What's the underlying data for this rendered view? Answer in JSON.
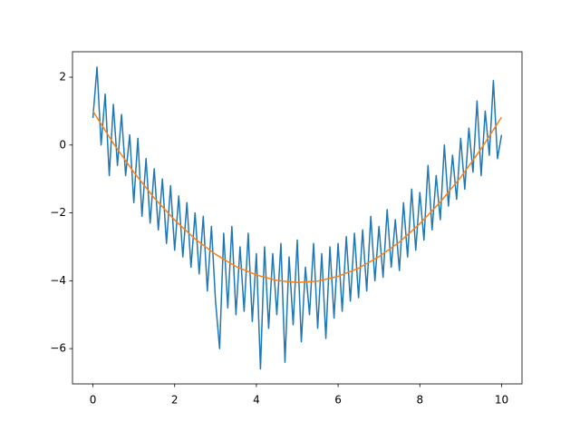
{
  "chart_data": {
    "type": "line",
    "xlim": [
      -0.5,
      10.5
    ],
    "ylim": [
      -7.04,
      2.75
    ],
    "xticks": [
      0,
      2,
      4,
      6,
      8,
      10
    ],
    "yticks": [
      {
        "value": -6,
        "label": "−6"
      },
      {
        "value": -4,
        "label": "−4"
      },
      {
        "value": -2,
        "label": "−2"
      },
      0,
      2
    ],
    "grid": false,
    "series": [
      {
        "color": "#1f77b4",
        "x": [
          0,
          0.1,
          0.2,
          0.3,
          0.4,
          0.5,
          0.6,
          0.7,
          0.8,
          0.9,
          1,
          1.1,
          1.2,
          1.3,
          1.4,
          1.5,
          1.6,
          1.7,
          1.8,
          1.9,
          2,
          2.1,
          2.2,
          2.3,
          2.4,
          2.5,
          2.6,
          2.7,
          2.8,
          2.9,
          3,
          3.1,
          3.2,
          3.3,
          3.4,
          3.5,
          3.6,
          3.7,
          3.8,
          3.9,
          4,
          4.1,
          4.2,
          4.3,
          4.4,
          4.5,
          4.6,
          4.7,
          4.8,
          4.9,
          5,
          5.1,
          5.2,
          5.3,
          5.4,
          5.5,
          5.6,
          5.7,
          5.8,
          5.9,
          6,
          6.1,
          6.2,
          6.3,
          6.4,
          6.5,
          6.6,
          6.7,
          6.8,
          6.9,
          7,
          7.1,
          7.2,
          7.3,
          7.4,
          7.5,
          7.6,
          7.7,
          7.8,
          7.9,
          8,
          8.1,
          8.2,
          8.3,
          8.4,
          8.5,
          8.6,
          8.7,
          8.8,
          8.9,
          9,
          9.1,
          9.2,
          9.3,
          9.4,
          9.5,
          9.6,
          9.7,
          9.8,
          9.9,
          10
        ],
        "values": [
          0.8,
          2.3,
          0.0,
          1.5,
          -0.9,
          1.2,
          -0.6,
          0.9,
          -0.9,
          0.3,
          -1.7,
          0.2,
          -2.1,
          -0.4,
          -2.3,
          -0.7,
          -2.5,
          -1.0,
          -2.9,
          -1.2,
          -3.1,
          -1.5,
          -3.3,
          -1.7,
          -3.6,
          -2.0,
          -3.8,
          -2.1,
          -4.3,
          -2.4,
          -4.6,
          -6.0,
          -2.6,
          -4.8,
          -2.4,
          -5.0,
          -3.0,
          -4.9,
          -2.6,
          -5.2,
          -3.2,
          -6.6,
          -3.0,
          -5.4,
          -3.2,
          -5.0,
          -2.9,
          -6.4,
          -3.3,
          -5.3,
          -2.8,
          -5.8,
          -3.6,
          -5.0,
          -2.9,
          -5.4,
          -3.2,
          -5.7,
          -3.0,
          -5.1,
          -2.9,
          -4.9,
          -2.7,
          -4.6,
          -2.6,
          -4.5,
          -2.5,
          -4.3,
          -2.1,
          -4.0,
          -2.4,
          -3.9,
          -1.9,
          -3.6,
          -2.2,
          -3.7,
          -1.7,
          -3.3,
          -1.3,
          -3.1,
          -1.4,
          -2.8,
          -0.6,
          -2.5,
          -0.9,
          -2.2,
          0.0,
          -1.8,
          -0.3,
          -1.6,
          0.2,
          -1.3,
          0.5,
          -0.8,
          1.3,
          -0.9,
          1.0,
          -0.3,
          1.9,
          -0.4,
          0.3
        ]
      },
      {
        "color": "#ff7f0e",
        "x": [
          0,
          0.5,
          1,
          1.5,
          2,
          2.5,
          3,
          3.5,
          4,
          4.5,
          5,
          5.5,
          6,
          6.5,
          7,
          7.5,
          8,
          8.5,
          9,
          9.5,
          10
        ],
        "values": [
          1.0,
          0.05,
          -0.8,
          -1.56,
          -2.21,
          -2.77,
          -3.22,
          -3.58,
          -3.83,
          -3.99,
          -4.05,
          -4.01,
          -3.87,
          -3.63,
          -3.29,
          -2.86,
          -2.32,
          -1.68,
          -0.95,
          -0.11,
          0.82
        ]
      }
    ]
  }
}
